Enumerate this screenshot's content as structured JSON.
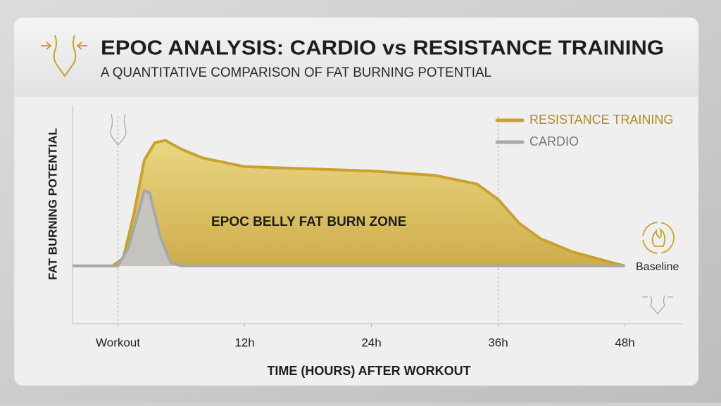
{
  "chart_data": {
    "type": "area",
    "title": "EPOC ANALYSIS: CARDIO vs RESISTANCE TRAINING",
    "subtitle": "A QUANTITATIVE COMPARISON OF FAT BURNING POTENTIAL",
    "y_label": "FAT BURNING POTENTIAL",
    "x_label": "TIME (HOURS) AFTER WORKOUT",
    "annotations": [
      "EPOC BELLY FAT BURN ZONE",
      "Baseline"
    ],
    "xlim": [
      -4.3,
      53.5
    ],
    "ylim": [
      0,
      100
    ],
    "xticks": [
      {
        "value": 0,
        "label": "Workout"
      },
      {
        "value": 12,
        "label": "12h"
      },
      {
        "value": 24,
        "label": "24h"
      },
      {
        "value": 36,
        "label": "36h"
      },
      {
        "value": 48,
        "label": "48h"
      }
    ],
    "x_guides": [
      0,
      36
    ],
    "legend": "upper-right",
    "series": [
      {
        "name": "RESISTANCE TRAINING",
        "color": "#c9a22e",
        "x": [
          -4.3,
          -0.5,
          0.5,
          1.5,
          2.5,
          3.5,
          4.5,
          6,
          8,
          12,
          18,
          24,
          30,
          34,
          36,
          38,
          40,
          43,
          46,
          48
        ],
        "values": [
          26.5,
          26.5,
          30,
          50,
          75,
          83,
          84,
          80,
          76,
          72,
          71,
          70,
          68,
          64,
          57,
          46,
          39,
          33,
          29,
          26.5
        ]
      },
      {
        "name": "CARDIO",
        "color": "#a8a8a8",
        "x": [
          -4.3,
          0,
          1,
          2,
          2.5,
          3,
          4,
          5,
          6,
          48
        ],
        "values": [
          26.5,
          26.5,
          35,
          52,
          61,
          60,
          40,
          28,
          26.5,
          26.5
        ]
      }
    ]
  }
}
